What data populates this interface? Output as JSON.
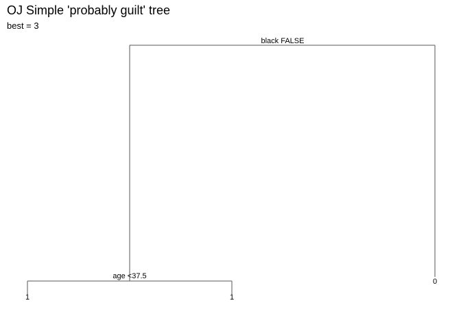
{
  "title": "OJ Simple 'probably guilt' tree",
  "subtitle": "best = 3",
  "tree": {
    "root_split": "black FALSE",
    "left_split": "age <37.5",
    "leaves": {
      "left_left": "1",
      "left_right": "1",
      "right": "0"
    }
  },
  "colors": {
    "edge": "#555555",
    "text": "#000000",
    "background": "#ffffff"
  }
}
